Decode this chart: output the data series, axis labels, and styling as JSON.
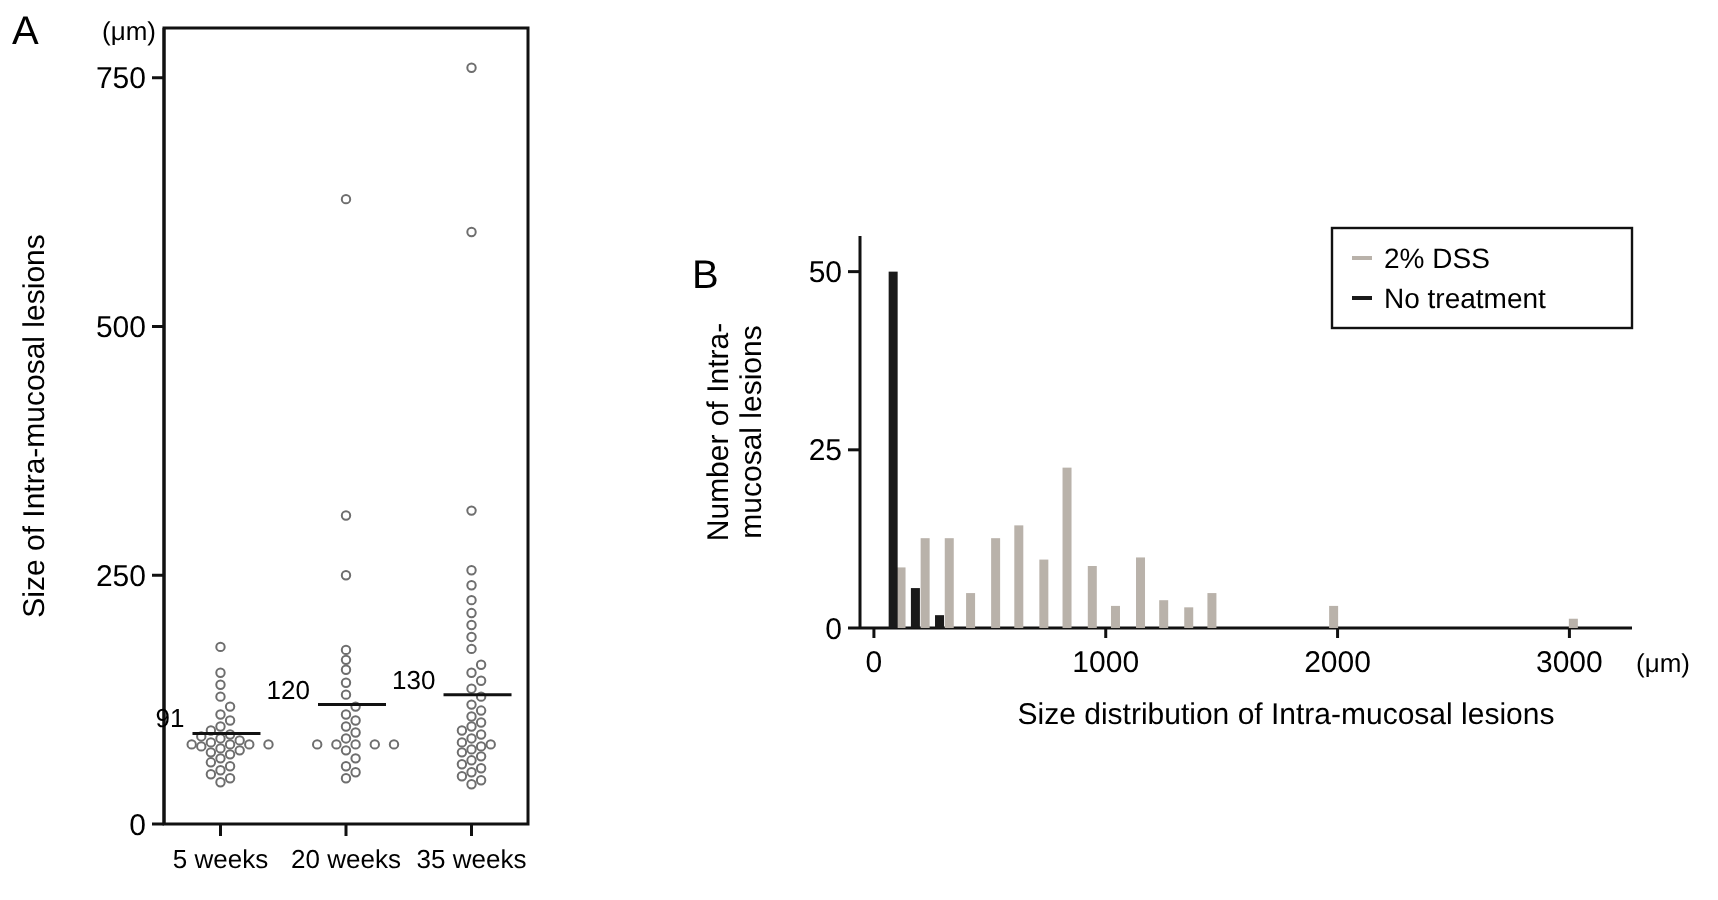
{
  "chart_data": [
    {
      "type": "scatter",
      "title": "A",
      "ylabel": "Size of Intra-mucosal lesions",
      "categories": [
        "5 weeks",
        "20 weeks",
        "35 weeks"
      ],
      "ylim": [
        0,
        800
      ],
      "yticks": [
        0,
        250,
        500,
        750
      ],
      "marker": "circle",
      "grid": false,
      "series": [
        {
          "color": "#6e6e6e",
          "x": [
            "5 weeks",
            "5 weeks",
            "5 weeks",
            "5 weeks",
            "5 weeks",
            "5 weeks",
            "5 weeks",
            "5 weeks",
            "5 weeks",
            "5 weeks",
            "5 weeks",
            "5 weeks",
            "5 weeks",
            "5 weeks",
            "5 weeks",
            "5 weeks",
            "5 weeks",
            "5 weeks",
            "5 weeks",
            "5 weeks",
            "5 weeks",
            "5 weeks",
            "5 weeks",
            "5 weeks",
            "5 weeks",
            "5 weeks",
            "5 weeks",
            "5 weeks",
            "5 weeks",
            "5 weeks"
          ],
          "values": [
            178,
            152,
            140,
            128,
            118,
            110,
            104,
            98,
            94,
            90,
            88,
            86,
            84,
            82,
            80,
            80,
            80,
            80,
            78,
            76,
            74,
            72,
            70,
            66,
            62,
            58,
            54,
            50,
            46,
            42
          ]
        },
        {
          "color": "#6e6e6e",
          "x": [
            "20 weeks",
            "20 weeks",
            "20 weeks",
            "20 weeks",
            "20 weeks",
            "20 weeks",
            "20 weeks",
            "20 weeks",
            "20 weeks",
            "20 weeks",
            "20 weeks",
            "20 weeks",
            "20 weeks",
            "20 weeks",
            "20 weeks",
            "20 weeks",
            "20 weeks",
            "20 weeks",
            "20 weeks",
            "20 weeks",
            "20 weeks",
            "20 weeks",
            "20 weeks",
            "20 weeks"
          ],
          "values": [
            628,
            310,
            250,
            175,
            165,
            155,
            142,
            130,
            118,
            110,
            104,
            98,
            92,
            86,
            80,
            80,
            80,
            80,
            80,
            74,
            66,
            58,
            52,
            46
          ]
        },
        {
          "color": "#6e6e6e",
          "x": [
            "35 weeks",
            "35 weeks",
            "35 weeks",
            "35 weeks",
            "35 weeks",
            "35 weeks",
            "35 weeks",
            "35 weeks",
            "35 weeks",
            "35 weeks",
            "35 weeks",
            "35 weeks",
            "35 weeks",
            "35 weeks",
            "35 weeks",
            "35 weeks",
            "35 weeks",
            "35 weeks",
            "35 weeks",
            "35 weeks",
            "35 weeks",
            "35 weeks",
            "35 weeks",
            "35 weeks",
            "35 weeks",
            "35 weeks",
            "35 weeks",
            "35 weeks",
            "35 weeks",
            "35 weeks",
            "35 weeks",
            "35 weeks",
            "35 weeks",
            "35 weeks",
            "35 weeks",
            "35 weeks"
          ],
          "values": [
            760,
            595,
            315,
            255,
            240,
            225,
            212,
            200,
            188,
            176,
            160,
            152,
            144,
            136,
            128,
            120,
            114,
            108,
            102,
            98,
            94,
            90,
            86,
            82,
            80,
            78,
            75,
            72,
            68,
            64,
            60,
            56,
            52,
            48,
            44,
            40
          ]
        }
      ],
      "annotations": [
        "(μm)",
        {
          "text": "91",
          "x": "5 weeks",
          "y": 91
        },
        {
          "text": "120",
          "x": "20 weeks",
          "y": 120
        },
        {
          "text": "130",
          "x": "35 weeks",
          "y": 130
        }
      ]
    },
    {
      "type": "bar",
      "title": "B",
      "xlabel": "Size distribution of Intra-mucosal lesions",
      "ylabel": "Number of Intra-\nmucosal lesions",
      "xlim": [
        -60,
        3270
      ],
      "xticks": [
        0,
        1000,
        2000,
        3000
      ],
      "ylim": [
        0,
        55
      ],
      "yticks": [
        0,
        25,
        50
      ],
      "grid": false,
      "legend": "top right",
      "series": [
        {
          "name": "2% DSS",
          "color": "#b9b2aa",
          "x": [
            117,
            221,
            325,
            417,
            525,
            625,
            733,
            833,
            942,
            1042,
            1150,
            1250,
            1358,
            1458,
            1983,
            3017
          ],
          "values": [
            8.5,
            12.6,
            12.6,
            4.9,
            12.6,
            14.4,
            9.6,
            22.5,
            8.7,
            3.1,
            9.9,
            3.9,
            2.9,
            4.9,
            3.1,
            1.3
          ]
        },
        {
          "name": "No treatment",
          "color": "#1a1a1a",
          "x": [
            83,
            179,
            283
          ],
          "values": [
            50,
            5.6,
            1.8
          ]
        }
      ],
      "annotations": [
        "(μm)"
      ]
    }
  ]
}
